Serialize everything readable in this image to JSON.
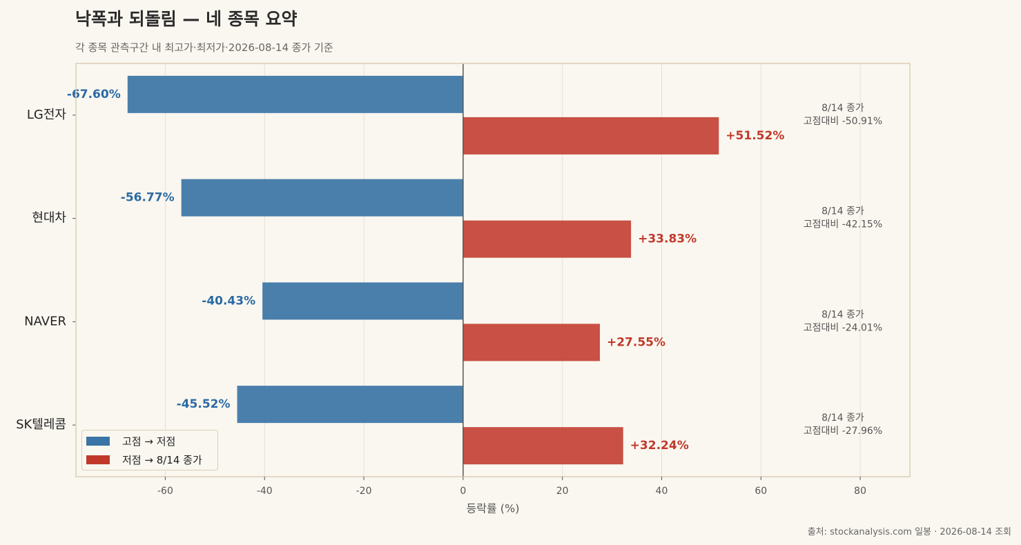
{
  "header": {
    "title": "낙폭과 되돌림 — 네 종목 요약",
    "subtitle": "각 종목 관측구간 내 최고가·최저가·2026-08-14 종가 기준",
    "source": "출처: stockanalysis.com 일봉 · 2026-08-14 조회"
  },
  "colors": {
    "drop": "#3b74a6",
    "rebound": "#c0392b",
    "drop_label": "#2b6aa3",
    "rebound_label": "#c0392b"
  },
  "chart_data": {
    "type": "bar",
    "orientation": "horizontal",
    "categories": [
      "LG전자",
      "현대차",
      "NAVER",
      "SK텔레콤"
    ],
    "series": [
      {
        "name": "고점 → 저점",
        "values": [
          -67.6,
          -56.77,
          -40.43,
          -45.52
        ],
        "labels": [
          "-67.60%",
          "-56.77%",
          "-40.43%",
          "-45.52%"
        ]
      },
      {
        "name": "저점 → 8/14 종가",
        "values": [
          51.52,
          33.83,
          27.55,
          32.24
        ],
        "labels": [
          "+51.52%",
          "+33.83%",
          "+27.55%",
          "+32.24%"
        ]
      }
    ],
    "annotations": [
      {
        "line1": "8/14 종가",
        "line2": "고점대비 -50.91%"
      },
      {
        "line1": "8/14 종가",
        "line2": "고점대비 -42.15%"
      },
      {
        "line1": "8/14 종가",
        "line2": "고점대비 -24.01%"
      },
      {
        "line1": "8/14 종가",
        "line2": "고점대비 -27.96%"
      }
    ],
    "xlabel": "등락률 (%)",
    "xlim": [
      -78,
      90
    ],
    "xticks": [
      -60,
      -40,
      -20,
      0,
      20,
      40,
      60,
      80
    ],
    "xtick_labels": [
      "-60",
      "-40",
      "-20",
      "0",
      "20",
      "40",
      "60",
      "80"
    ],
    "grid": true,
    "legend_position": "lower-left"
  }
}
